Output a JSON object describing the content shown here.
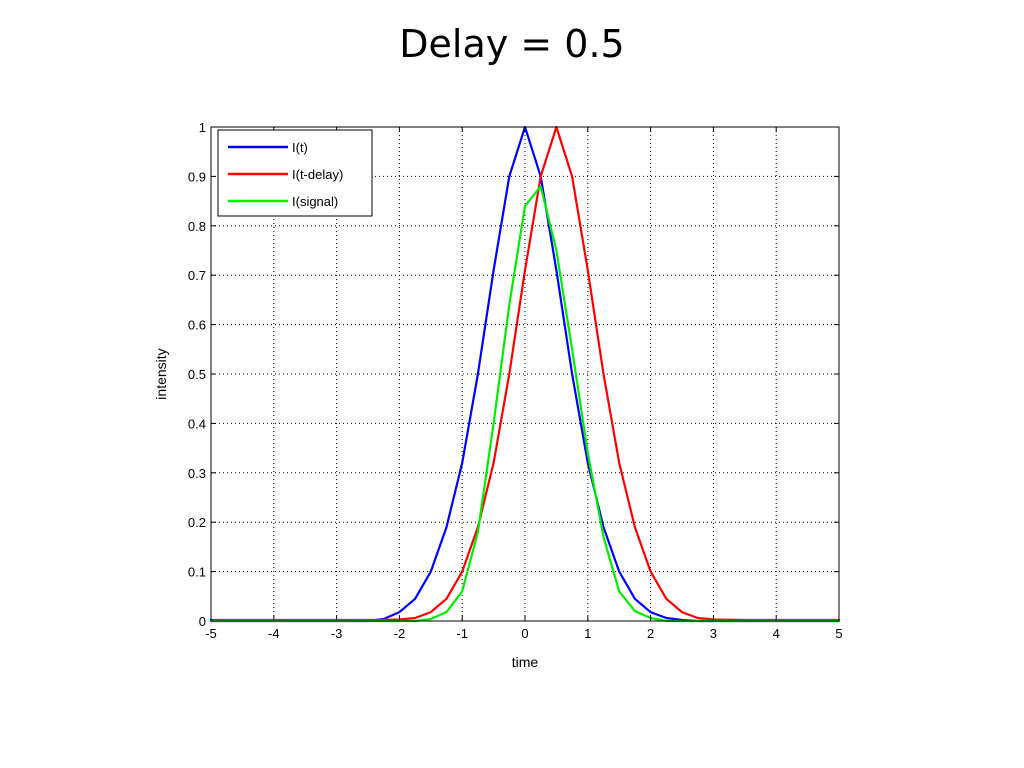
{
  "slide": {
    "title": "Delay = 0.5"
  },
  "chart_data": {
    "type": "line",
    "xlabel": "time",
    "ylabel": "intensity",
    "xlim": [
      -5,
      5
    ],
    "ylim": [
      0,
      1
    ],
    "xticks": [
      -5,
      -4,
      -3,
      -2,
      -1,
      0,
      1,
      2,
      3,
      4,
      5
    ],
    "yticks": [
      0,
      0.1,
      0.2,
      0.3,
      0.4,
      0.5,
      0.6,
      0.7,
      0.8,
      0.9,
      1
    ],
    "ytick_labels": [
      "0",
      "0.1",
      "0.2",
      "0.3",
      "0.4",
      "0.5",
      "0.6",
      "0.7",
      "0.8",
      "0.9",
      "1"
    ],
    "grid": true,
    "grid_style": "dotted",
    "legend_position": "top-left",
    "x": [
      -5.0,
      -4.5,
      -4.0,
      -3.5,
      -3.0,
      -2.5,
      -2.25,
      -2.0,
      -1.75,
      -1.5,
      -1.25,
      -1.0,
      -0.75,
      -0.5,
      -0.25,
      0.0,
      0.25,
      0.5,
      0.75,
      1.0,
      1.25,
      1.5,
      1.75,
      2.0,
      2.25,
      2.5,
      2.75,
      3.0,
      3.5,
      4.0,
      4.5,
      5.0
    ],
    "series": [
      {
        "name": "I(t)",
        "color": "#0000ff",
        "values": [
          0.0,
          0.0,
          0.0,
          0.0,
          0.0,
          0.0,
          0.004,
          0.018,
          0.045,
          0.1,
          0.19,
          0.32,
          0.5,
          0.71,
          0.9,
          1.0,
          0.9,
          0.71,
          0.5,
          0.32,
          0.19,
          0.1,
          0.045,
          0.018,
          0.006,
          0.002,
          0.0,
          0.0,
          0.0,
          0.0,
          0.0,
          0.0
        ]
      },
      {
        "name": "I(t-delay)",
        "color": "#ff0000",
        "values": [
          0.002,
          0.002,
          0.002,
          0.002,
          0.002,
          0.002,
          0.002,
          0.003,
          0.006,
          0.018,
          0.045,
          0.1,
          0.19,
          0.32,
          0.5,
          0.71,
          0.9,
          1.0,
          0.9,
          0.71,
          0.5,
          0.32,
          0.19,
          0.1,
          0.045,
          0.018,
          0.006,
          0.003,
          0.002,
          0.002,
          0.002,
          0.002
        ]
      },
      {
        "name": "I(signal)",
        "color": "#00ee00",
        "values": [
          0.0,
          0.0,
          0.0,
          0.0,
          0.0,
          0.0,
          0.0,
          0.0,
          0.0,
          0.004,
          0.018,
          0.06,
          0.18,
          0.4,
          0.64,
          0.84,
          0.88,
          0.75,
          0.55,
          0.34,
          0.17,
          0.06,
          0.02,
          0.006,
          0.0,
          0.0,
          0.0,
          0.0,
          0.0,
          0.0,
          0.0,
          0.0
        ]
      }
    ]
  }
}
